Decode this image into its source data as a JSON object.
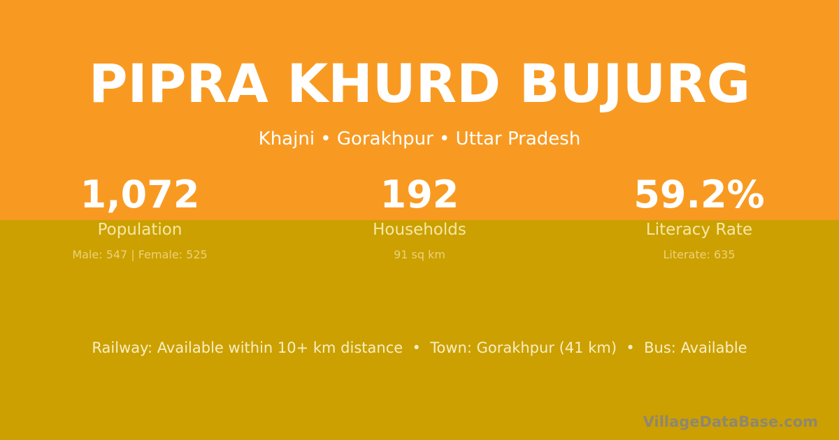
{
  "header": {
    "title": "PIPRA KHURD BUJURG",
    "location": "Khajni • Gorakhpur • Uttar Pradesh"
  },
  "stats": [
    {
      "value": "1,072",
      "label": "Population",
      "detail": "Male: 547 | Female: 525"
    },
    {
      "value": "192",
      "label": "Households",
      "detail": "91 sq km"
    },
    {
      "value": "59.2%",
      "label": "Literacy Rate",
      "detail": "Literate: 635"
    }
  ],
  "access": "Railway: Available within 10+ km distance  •  Town: Gorakhpur (41 km)  •  Bus: Available",
  "brand": "VillageDataBase.com",
  "colors": {
    "top_background": "#f89a22",
    "bottom_background": "#cca000"
  }
}
